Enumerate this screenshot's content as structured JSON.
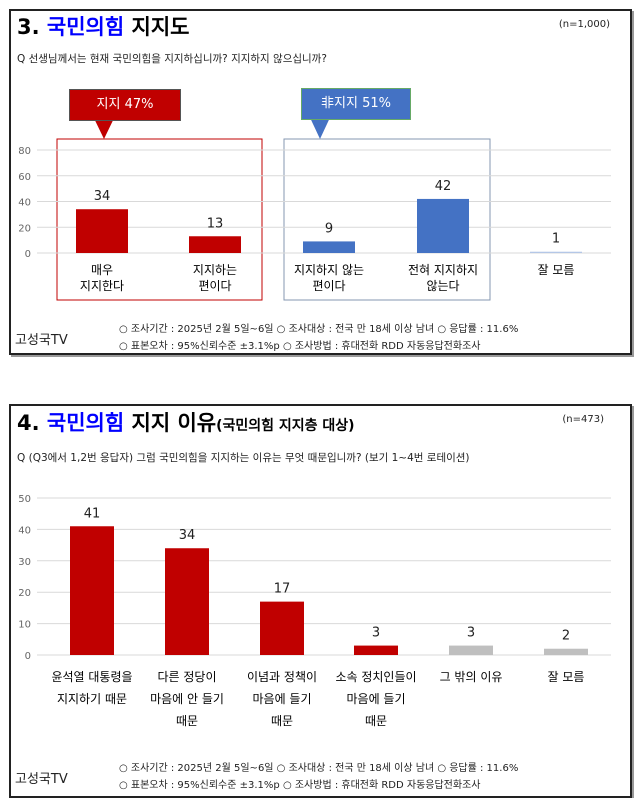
{
  "panels": [
    {
      "title_num": "3.",
      "title_party": "국민의힘",
      "title_rest": "지지도",
      "title_sub": "",
      "n": "(n=1,000)",
      "question": "Q 선생님께서는 현재 국민의힘을 지지하십니까? 지지하지 않으십니까?",
      "callouts": [
        {
          "label": "지지 47%",
          "color": "#C00000"
        },
        {
          "label": "非지지 51%",
          "color": "#4472C4"
        }
      ]
    },
    {
      "title_num": "4.",
      "title_party": "국민의힘",
      "title_rest": "지지 이유",
      "title_sub": "(국민의힘 지지층 대상)",
      "n": "(n=473)",
      "question": "Q (Q3에서 1,2번 응답자) 그럼 국민의힘을 지지하는 이유는 무엇 때문입니까? (보기 1~4번 로테이션)"
    }
  ],
  "footer": {
    "brand": "고성국TV",
    "line1": "○ 조사기간 : 2025년 2월 5일~6일 ○ 조사대상 : 전국 만 18세 이상 남녀 ○ 응답률 : 11.6%",
    "line2": "○ 표본오차 : 95%신뢰수준 ±3.1%p ○ 조사방법 : 휴대전화 RDD 자동응답전화조사"
  },
  "chart_data": [
    {
      "type": "bar",
      "ylim": [
        0,
        80
      ],
      "yticks": [
        0,
        20,
        40,
        60,
        80
      ],
      "grid": true,
      "categories": [
        [
          "매우",
          "지지한다"
        ],
        [
          "지지하는",
          "편이다"
        ],
        [
          "지지하지 않는",
          "편이다"
        ],
        [
          "전혀 지지하지",
          "않는다"
        ],
        [
          "잘 모름"
        ]
      ],
      "values": [
        34,
        13,
        9,
        42,
        1
      ],
      "colors": [
        "#C00000",
        "#C00000",
        "#4472C4",
        "#4472C4",
        "#B4C7E7"
      ]
    },
    {
      "type": "bar",
      "ylim": [
        0,
        50
      ],
      "yticks": [
        0,
        10,
        20,
        30,
        40,
        50
      ],
      "grid": true,
      "categories": [
        [
          "윤석열 대통령을",
          "지지하기 때문"
        ],
        [
          "다른 정당이",
          "마음에 안 들기",
          "때문"
        ],
        [
          "이념과 정책이",
          "마음에 들기",
          "때문"
        ],
        [
          "소속 정치인들이",
          "마음에 들기",
          "때문"
        ],
        [
          "그 밖의 이유"
        ],
        [
          "잘 모름"
        ]
      ],
      "values": [
        41,
        34,
        17,
        3,
        3,
        2
      ],
      "colors": [
        "#C00000",
        "#C00000",
        "#C00000",
        "#C00000",
        "#BFBFBF",
        "#BFBFBF"
      ]
    }
  ]
}
